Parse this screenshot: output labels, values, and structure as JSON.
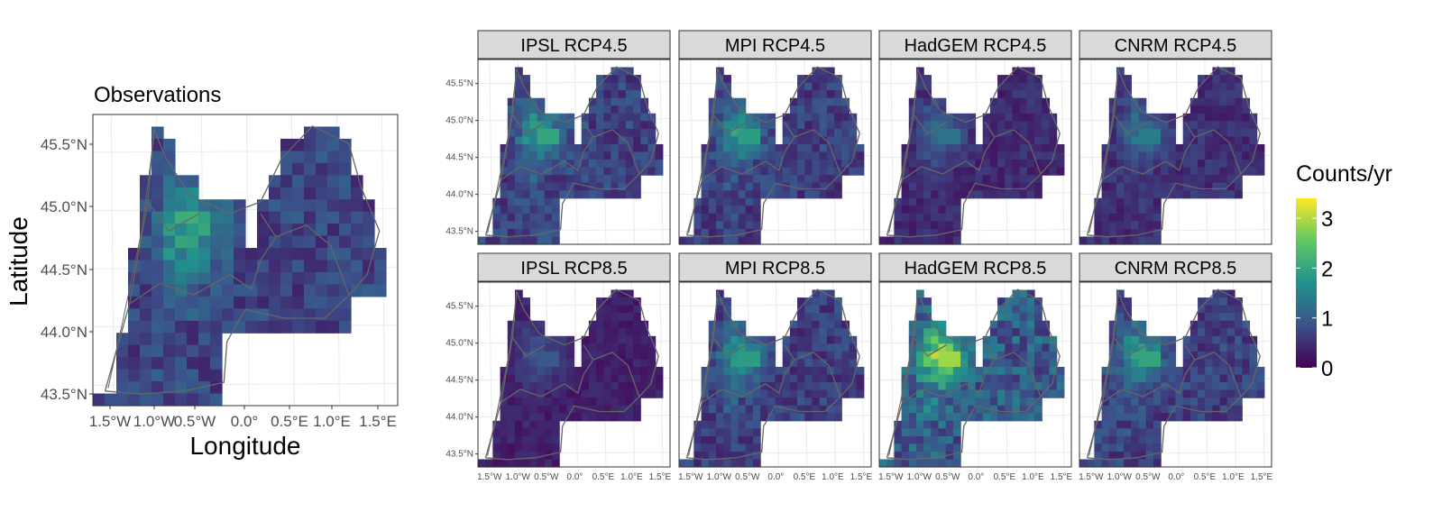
{
  "observations": {
    "title": "Observations",
    "xlabel": "Longitude",
    "ylabel": "Latitude",
    "x_ticks": [
      "1.5°W",
      "1.0°W",
      "0.5°W",
      "0.0°",
      "0.5°E",
      "1.0°E",
      "1.5°E"
    ],
    "y_ticks": [
      "43.5°N",
      "44.0°N",
      "44.5°N",
      "45.0°N",
      "45.5°N"
    ]
  },
  "panels": [
    {
      "label": "IPSL RCP4.5",
      "intensity": 0.85
    },
    {
      "label": "MPI RCP4.5",
      "intensity": 0.8
    },
    {
      "label": "HadGEM RCP4.5",
      "intensity": 0.55
    },
    {
      "label": "CNRM RCP4.5",
      "intensity": 0.6
    },
    {
      "label": "IPSL RCP8.5",
      "intensity": 0.4
    },
    {
      "label": "MPI RCP8.5",
      "intensity": 0.8
    },
    {
      "label": "HadGEM RCP8.5",
      "intensity": 1.25
    },
    {
      "label": "CNRM RCP8.5",
      "intensity": 0.85
    }
  ],
  "panel_x_ticks": [
    "1.5°W",
    "1.0°W",
    "0.5°W",
    "0.0°",
    "0.5°E",
    "1.0°E",
    "1.5°E"
  ],
  "panel_y_ticks": [
    "43.5°N",
    "44.0°N",
    "44.5°N",
    "45.0°N",
    "45.5°N"
  ],
  "legend": {
    "title": "Counts/yr",
    "ticks": [
      "0",
      "1",
      "2",
      "3"
    ],
    "range": [
      0,
      3.4
    ]
  },
  "colors": {
    "viridis_low": "#440154",
    "viridis_mid": "#21918c",
    "viridis_high": "#fde725",
    "strip_fill": "#d9d9d9",
    "grid": "#ebebeb",
    "boundary": "#666666"
  }
}
